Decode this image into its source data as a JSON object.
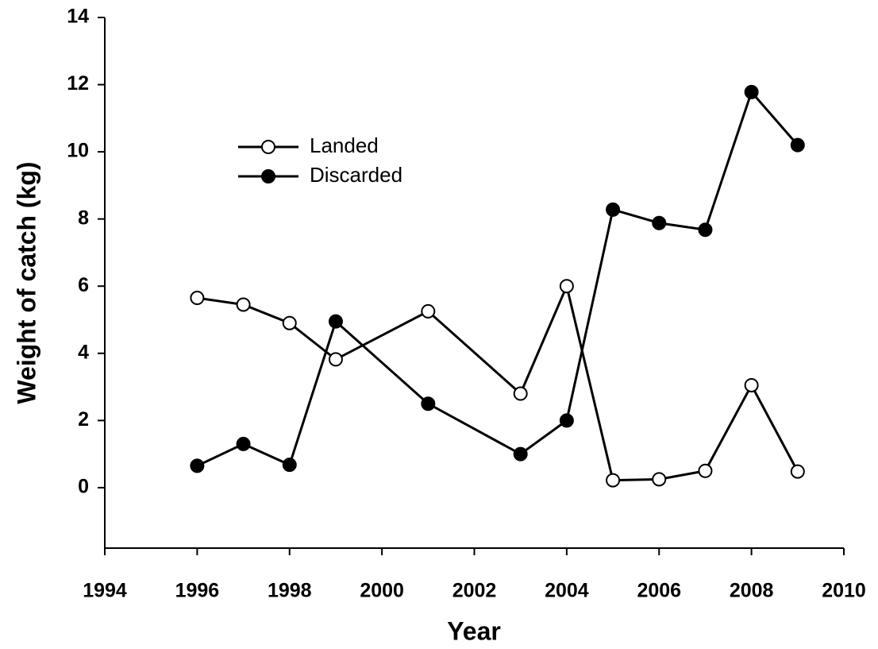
{
  "chart_data": {
    "type": "line",
    "xlabel": "Year",
    "ylabel": "Weight of catch (kg)",
    "x": [
      1996,
      1997,
      1998,
      1999,
      2001,
      2003,
      2004,
      2005,
      2006,
      2007,
      2008,
      2009
    ],
    "series": [
      {
        "name": "Landed",
        "color": "#000000",
        "marker_fill": "#ffffff",
        "values": [
          5.65,
          5.45,
          4.9,
          3.82,
          5.25,
          2.8,
          6.0,
          0.22,
          0.25,
          0.5,
          3.05,
          0.48
        ]
      },
      {
        "name": "Discarded",
        "color": "#000000",
        "marker_fill": "#000000",
        "values": [
          0.65,
          1.3,
          0.68,
          4.95,
          2.5,
          1.0,
          2.0,
          8.28,
          7.88,
          7.68,
          11.78,
          10.2
        ]
      }
    ],
    "xlim": [
      1994,
      2010
    ],
    "xticks": [
      1994,
      1996,
      1998,
      2000,
      2002,
      2004,
      2006,
      2008,
      2010
    ],
    "ylim": [
      -1.8,
      14
    ],
    "yticks": [
      0,
      2,
      4,
      6,
      8,
      10,
      12,
      14
    ],
    "grid": false,
    "legend": "upper left"
  }
}
